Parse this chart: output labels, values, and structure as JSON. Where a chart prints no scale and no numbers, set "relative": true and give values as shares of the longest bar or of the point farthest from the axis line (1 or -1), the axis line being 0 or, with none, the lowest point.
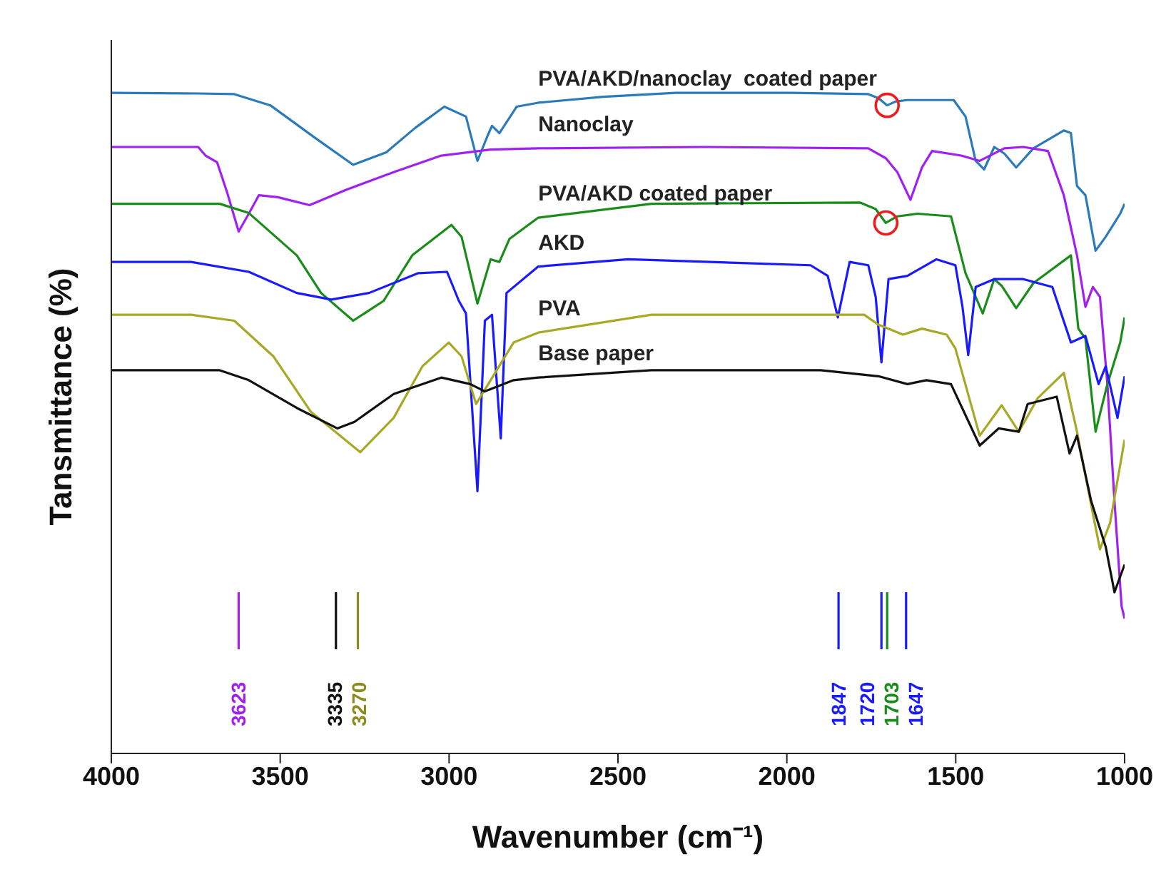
{
  "chart_data": {
    "type": "line",
    "relative": true,
    "xlabel": "Wavenumber (cm⁻¹)",
    "ylabel": "Tansmittance (%)",
    "xlim": [
      4000,
      1000
    ],
    "xticks": [
      4000,
      3500,
      3000,
      2500,
      2000,
      1500,
      1000
    ],
    "tick_labels": "x",
    "marker": "none",
    "series": [
      {
        "name": "PVA/AKD/nanoclay  coated paper",
        "color": "#2b7bba",
        "x": [
          4000,
          3743,
          3636,
          3529,
          3400,
          3284,
          3186,
          3100,
          3014,
          2950,
          2916,
          2886,
          2873,
          2851,
          2800,
          2736,
          2543,
          2329,
          1986,
          1759,
          1729,
          1703,
          1677,
          1643,
          1506,
          1471,
          1441,
          1416,
          1386,
          1356,
          1321,
          1270,
          1180,
          1159,
          1141,
          1116,
          1086,
          1056,
          1013,
          1000
        ],
        "values": [
          1.0,
          0.999,
          0.998,
          0.981,
          0.933,
          0.891,
          0.91,
          0.947,
          0.979,
          0.964,
          0.897,
          0.935,
          0.95,
          0.939,
          0.979,
          0.985,
          0.994,
          1.0,
          1.0,
          0.998,
          0.992,
          0.981,
          0.987,
          0.989,
          0.989,
          0.964,
          0.897,
          0.884,
          0.918,
          0.908,
          0.887,
          0.916,
          0.943,
          0.939,
          0.859,
          0.845,
          0.761,
          0.782,
          0.817,
          0.832
        ]
      },
      {
        "name": "Nanoclay",
        "color": "#a020f0",
        "x": [
          4000,
          3743,
          3721,
          3687,
          3657,
          3623,
          3593,
          3563,
          3507,
          3413,
          3306,
          3164,
          3023,
          2877,
          2736,
          2243,
          1759,
          1707,
          1673,
          1634,
          1600,
          1570,
          1484,
          1429,
          1356,
          1300,
          1227,
          1180,
          1141,
          1116,
          1094,
          1073,
          1051,
          1030,
          1009,
          1000
        ],
        "values": [
          0.918,
          0.918,
          0.905,
          0.895,
          0.849,
          0.79,
          0.817,
          0.845,
          0.842,
          0.83,
          0.853,
          0.88,
          0.905,
          0.914,
          0.916,
          0.918,
          0.916,
          0.901,
          0.88,
          0.838,
          0.887,
          0.912,
          0.905,
          0.897,
          0.916,
          0.918,
          0.912,
          0.845,
          0.754,
          0.676,
          0.706,
          0.691,
          0.559,
          0.382,
          0.223,
          0.204
        ]
      },
      {
        "name": "PVA/AKD coated paper",
        "color": "#1a8c1a",
        "x": [
          4000,
          3679,
          3593,
          3451,
          3379,
          3284,
          3194,
          3109,
          2993,
          2963,
          2916,
          2877,
          2851,
          2821,
          2736,
          2401,
          1784,
          1737,
          1707,
          1673,
          1613,
          1514,
          1471,
          1420,
          1386,
          1364,
          1321,
          1270,
          1159,
          1137,
          1116,
          1086,
          1051,
          1013,
          1000
        ],
        "values": [
          0.832,
          0.832,
          0.818,
          0.754,
          0.697,
          0.655,
          0.685,
          0.754,
          0.8,
          0.782,
          0.681,
          0.748,
          0.744,
          0.779,
          0.811,
          0.832,
          0.834,
          0.824,
          0.803,
          0.813,
          0.817,
          0.813,
          0.727,
          0.666,
          0.718,
          0.708,
          0.674,
          0.712,
          0.754,
          0.643,
          0.628,
          0.487,
          0.559,
          0.622,
          0.66
        ]
      },
      {
        "name": "AKD",
        "color": "#1a1aff",
        "x": [
          4000,
          3764,
          3593,
          3451,
          3349,
          3237,
          3091,
          3006,
          2971,
          2950,
          2916,
          2894,
          2873,
          2847,
          2830,
          2736,
          2470,
          1930,
          1879,
          1849,
          1814,
          1759,
          1737,
          1720,
          1699,
          1643,
          1557,
          1501,
          1480,
          1463,
          1441,
          1386,
          1300,
          1214,
          1159,
          1116,
          1077,
          1056,
          1021,
          1000
        ],
        "values": [
          0.744,
          0.744,
          0.729,
          0.697,
          0.687,
          0.697,
          0.727,
          0.729,
          0.685,
          0.666,
          0.397,
          0.655,
          0.664,
          0.477,
          0.697,
          0.737,
          0.748,
          0.739,
          0.723,
          0.66,
          0.744,
          0.739,
          0.691,
          0.592,
          0.718,
          0.723,
          0.748,
          0.739,
          0.676,
          0.603,
          0.706,
          0.718,
          0.718,
          0.706,
          0.622,
          0.632,
          0.559,
          0.586,
          0.508,
          0.571
        ]
      },
      {
        "name": "PVA",
        "color": "#a8a827",
        "x": [
          4000,
          3764,
          3636,
          3520,
          3409,
          3263,
          3164,
          3079,
          3001,
          2963,
          2920,
          2877,
          2809,
          2736,
          2401,
          1771,
          1729,
          1656,
          1600,
          1527,
          1501,
          1429,
          1364,
          1313,
          1257,
          1180,
          1141,
          1099,
          1073,
          1043,
          1000
        ],
        "values": [
          0.664,
          0.664,
          0.655,
          0.601,
          0.517,
          0.456,
          0.508,
          0.586,
          0.622,
          0.601,
          0.529,
          0.565,
          0.622,
          0.637,
          0.664,
          0.664,
          0.649,
          0.634,
          0.643,
          0.634,
          0.613,
          0.481,
          0.527,
          0.487,
          0.538,
          0.576,
          0.487,
          0.376,
          0.309,
          0.349,
          0.475
        ]
      },
      {
        "name": "Base paper",
        "color": "#111111",
        "x": [
          4000,
          3679,
          3593,
          3451,
          3331,
          3280,
          3164,
          3023,
          2937,
          2894,
          2809,
          2736,
          2401,
          1900,
          1729,
          1643,
          1587,
          1514,
          1429,
          1373,
          1313,
          1287,
          1201,
          1163,
          1141,
          1099,
          1056,
          1030,
          1000
        ],
        "values": [
          0.58,
          0.58,
          0.565,
          0.523,
          0.492,
          0.502,
          0.544,
          0.569,
          0.559,
          0.548,
          0.565,
          0.569,
          0.58,
          0.58,
          0.571,
          0.559,
          0.565,
          0.559,
          0.466,
          0.492,
          0.487,
          0.529,
          0.54,
          0.454,
          0.481,
          0.382,
          0.313,
          0.244,
          0.286
        ]
      }
    ],
    "ref_lines": [
      {
        "axis": "x",
        "value": 3623,
        "label": "3623",
        "color": "#a020f0"
      },
      {
        "axis": "x",
        "value": 3335,
        "label": "3335",
        "color": "#111111"
      },
      {
        "axis": "x",
        "value": 3270,
        "label": "3270",
        "color": "#8c8c1a"
      },
      {
        "axis": "x",
        "value": 1847,
        "label": "1847",
        "color": "#1a1aff"
      },
      {
        "axis": "x",
        "value": 1720,
        "label": "1720",
        "color": "#1a1aff"
      },
      {
        "axis": "x",
        "value": 1703,
        "label": "1703",
        "color": "#1a8c1a"
      },
      {
        "axis": "x",
        "value": 1647,
        "label": "1647",
        "color": "#1a1aff"
      }
    ]
  }
}
